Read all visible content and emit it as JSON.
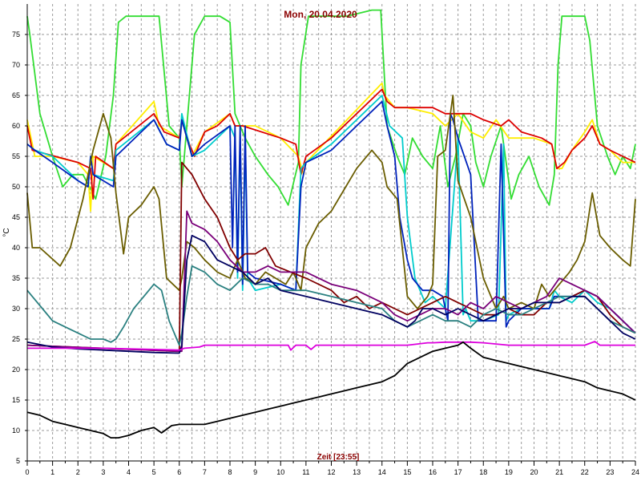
{
  "chart_data": {
    "type": "line",
    "title": "Mon, 20.04.2020",
    "xlabel": "Zeit [23:55]",
    "ylabel": "°C",
    "xlim": [
      0,
      24
    ],
    "ylim": [
      5,
      80
    ],
    "xticks": [
      0,
      1,
      2,
      3,
      4,
      5,
      6,
      7,
      8,
      9,
      10,
      11,
      12,
      13,
      14,
      15,
      16,
      17,
      18,
      19,
      20,
      21,
      22,
      23,
      24
    ],
    "yticks": [
      5,
      10,
      15,
      20,
      25,
      30,
      35,
      40,
      45,
      50,
      55,
      60,
      65,
      70,
      75
    ],
    "grid": true,
    "series": [
      {
        "color": "#33dd33",
        "x": [
          0,
          0.1,
          0.5,
          1,
          1.4,
          1.8,
          2.2,
          2.7,
          3.1,
          3.4,
          3.6,
          3.9,
          4.3,
          4.8,
          5.2,
          5.6,
          6,
          6.1,
          6.3,
          6.6,
          7,
          7.6,
          8,
          8.2,
          8.6,
          9,
          9.5,
          9.9,
          10.3,
          10.7,
          10.8,
          11.1,
          11.6,
          12.6,
          13.6,
          13.95,
          14.2,
          14.6,
          14.9,
          15.2,
          15.6,
          16,
          16.3,
          16.6,
          16.9,
          17.2,
          17.5,
          17.7,
          18,
          18.3,
          18.7,
          19.1,
          19.4,
          19.8,
          20.2,
          20.6,
          20.8,
          20.95,
          21.1,
          21.4,
          22,
          22.2,
          22.5,
          22.9,
          23.2,
          23.5,
          23.8,
          24
        ],
        "y": [
          78,
          75,
          62,
          55,
          50,
          52,
          52,
          48,
          55,
          65,
          77,
          78,
          78,
          78,
          78,
          60,
          58,
          50,
          60,
          75,
          78,
          78,
          77,
          62,
          58,
          55,
          52,
          50,
          47,
          54,
          70,
          78,
          78,
          78,
          79,
          79,
          60,
          55,
          52,
          58,
          55,
          53,
          60,
          50,
          55,
          62,
          60,
          54,
          50,
          55,
          60,
          48,
          52,
          55,
          50,
          47,
          52,
          70,
          78,
          78,
          78,
          74,
          60,
          55,
          52,
          55,
          53,
          57
        ]
      },
      {
        "color": "#ffee00",
        "x": [
          0,
          0.3,
          1,
          2,
          2.4,
          2.5,
          2.6,
          3.4,
          3.5,
          5,
          5.2,
          6,
          6.1,
          6.5,
          7,
          8,
          8.2,
          9,
          10,
          10.7,
          10.9,
          11,
          14,
          14.1,
          14.5,
          15,
          16,
          16.5,
          17,
          17.5,
          18,
          18.5,
          19,
          19.5,
          20,
          20.7,
          20.9,
          21.1,
          21.5,
          22,
          22.3,
          22.6,
          23,
          23.5,
          24
        ],
        "y": [
          61,
          55,
          55,
          54,
          52,
          46,
          55,
          53,
          57,
          64,
          60,
          58,
          61,
          55,
          59,
          62,
          60,
          60,
          58,
          55,
          52,
          54,
          67,
          65,
          63,
          63,
          62,
          60,
          62,
          59,
          58,
          61,
          58,
          58,
          58,
          57,
          53,
          53,
          56,
          59,
          61,
          57,
          56,
          54,
          54
        ]
      },
      {
        "color": "#dd0000",
        "x": [
          0,
          0.2,
          2,
          2.5,
          2.6,
          2.7,
          3.4,
          3.5,
          5,
          5.4,
          6,
          6.1,
          6.4,
          6.6,
          7,
          7.5,
          8,
          8.2,
          8.5,
          10,
          10.6,
          10.8,
          11,
          12,
          14,
          14.2,
          14.5,
          15,
          16,
          16.5,
          17,
          17.5,
          18,
          18.7,
          19,
          19.5,
          20.3,
          20.7,
          20.9,
          21.2,
          21.5,
          22,
          22.3,
          22.6,
          23,
          23.5,
          24
        ],
        "y": [
          60,
          56,
          54,
          53,
          48,
          55,
          53,
          57,
          62,
          59,
          58,
          61,
          57,
          55,
          59,
          60,
          62,
          60,
          60,
          58,
          57,
          52,
          55,
          58,
          66,
          64,
          63,
          63,
          63,
          62,
          62,
          62,
          61,
          60,
          61,
          59,
          58,
          57,
          53,
          54,
          56,
          58,
          60,
          57,
          56,
          55,
          54
        ]
      },
      {
        "color": "#00cccc",
        "x": [
          0,
          0.3,
          1,
          2,
          2.4,
          2.5,
          2.6,
          3.4,
          3.5,
          5,
          5.5,
          6,
          6.1,
          6.5,
          7,
          8,
          8.2,
          8.3,
          8.4,
          8.5,
          8.6,
          8.7,
          9,
          10,
          10.6,
          10.8,
          11,
          12,
          14,
          14.3,
          14.8,
          15,
          15.3,
          15.5,
          15.7,
          16,
          16.5,
          17,
          17.2,
          17.3,
          17.5,
          18,
          18.6,
          18.8,
          18.9,
          19,
          19.5,
          20,
          20.6,
          20.8,
          21,
          21.5,
          22,
          22.5,
          23,
          23.5,
          24
        ],
        "y": [
          57,
          56,
          55,
          51,
          50,
          55,
          52,
          51,
          56,
          61,
          57,
          56,
          62,
          55,
          56,
          60,
          58,
          35,
          58,
          33,
          58,
          35,
          33,
          34,
          33,
          53,
          54,
          57,
          65,
          60,
          58,
          45,
          35,
          33,
          31,
          32,
          30,
          58,
          29,
          30,
          28,
          28,
          29,
          57,
          28,
          29,
          30,
          30,
          30,
          33,
          32,
          31,
          33,
          31,
          30,
          28,
          26
        ]
      },
      {
        "color": "#0022bb",
        "x": [
          0,
          0.3,
          1,
          2,
          2.4,
          2.5,
          2.6,
          3.4,
          3.5,
          5,
          5.5,
          6,
          6.1,
          6.5,
          7,
          8,
          8.1,
          8.2,
          8.3,
          8.4,
          8.5,
          8.6,
          8.7,
          9,
          10,
          10.6,
          10.8,
          11,
          12,
          14,
          14.2,
          14.5,
          14.7,
          15,
          15.2,
          15.4,
          15.6,
          16,
          16.4,
          16.6,
          16.7,
          16.8,
          17,
          17.5,
          17.8,
          18,
          18.5,
          18.7,
          18.9,
          19,
          19.5,
          20,
          20.6,
          20.8,
          21,
          21.5,
          22,
          22.5,
          23,
          23.5,
          24
        ],
        "y": [
          57,
          56,
          54,
          51,
          50,
          55,
          52,
          50,
          55,
          61,
          57,
          56,
          61,
          55,
          57,
          60,
          40,
          60,
          36,
          60,
          34,
          60,
          36,
          35,
          34,
          33,
          50,
          54,
          56,
          64,
          60,
          55,
          45,
          38,
          35,
          34,
          33,
          33,
          32,
          28,
          62,
          61,
          58,
          52,
          28,
          28,
          28,
          57,
          27,
          28,
          30,
          30,
          30,
          32,
          32,
          32,
          33,
          32,
          30,
          28,
          26
        ]
      },
      {
        "color": "#6a5d00",
        "x": [
          0,
          0.2,
          0.5,
          1.3,
          1.7,
          2.2,
          2.6,
          3,
          3.3,
          3.5,
          3.8,
          4,
          4.5,
          5,
          5.2,
          5.5,
          6,
          6.1,
          6.3,
          6.6,
          7,
          7.5,
          8,
          8.3,
          8.6,
          9,
          9.4,
          9.8,
          10.2,
          10.5,
          10.8,
          11,
          11.5,
          12,
          13,
          13.6,
          14,
          14.2,
          14.6,
          15,
          15.4,
          15.8,
          16,
          16.2,
          16.5,
          16.8,
          17,
          17.5,
          18,
          18.5,
          18.8,
          19,
          19.5,
          20,
          20.3,
          20.6,
          20.8,
          21,
          21.4,
          21.7,
          22,
          22.3,
          22.6,
          23,
          23.5,
          23.8,
          24
        ],
        "y": [
          49,
          40,
          40,
          37,
          40,
          48,
          56,
          62,
          58,
          49,
          39,
          45,
          47,
          50,
          48,
          35,
          33,
          35,
          41,
          40,
          38,
          36,
          35,
          38,
          35,
          34,
          36,
          35,
          34,
          36,
          33,
          40,
          44,
          46,
          53,
          56,
          54,
          50,
          48,
          32,
          30,
          32,
          34,
          55,
          56,
          65,
          51,
          45,
          35,
          30,
          32,
          30,
          31,
          30,
          34,
          32,
          33,
          34,
          36,
          38,
          41,
          49,
          42,
          40,
          38,
          37,
          48
        ]
      },
      {
        "color": "#800000",
        "x": [
          0,
          5.9,
          6,
          6.1,
          6.5,
          7,
          7.5,
          8,
          8.3,
          8.6,
          9,
          9.4,
          9.8,
          10.4,
          11,
          12,
          12.5,
          13,
          13.5,
          14,
          14.5,
          15,
          15.5,
          16,
          16.5,
          17,
          17.5,
          18,
          18.5,
          19,
          19.5,
          20,
          20.5,
          21,
          21.5,
          22,
          22.5,
          23,
          23.5,
          24
        ],
        "y": [
          24,
          23,
          23,
          54,
          52,
          48,
          45,
          40,
          38,
          39,
          39,
          40,
          37,
          36,
          35,
          33,
          31,
          32,
          30,
          31,
          30,
          29,
          30,
          31,
          32,
          31,
          30,
          29,
          29,
          30,
          29,
          29,
          31,
          31,
          32,
          33,
          32,
          29,
          27,
          26
        ]
      },
      {
        "color": "#7a007a",
        "x": [
          0,
          6,
          6.1,
          6.3,
          6.5,
          7,
          7.5,
          8,
          8.5,
          9,
          9.5,
          10,
          11,
          12,
          13,
          14,
          14.5,
          15,
          15.5,
          16,
          16.5,
          17,
          17.5,
          18,
          18.5,
          19,
          19.5,
          20,
          20.5,
          21,
          21.5,
          22,
          22.5,
          23,
          23.5,
          24
        ],
        "y": [
          24,
          23,
          23,
          46,
          44,
          43,
          41,
          38,
          36,
          36,
          37,
          36,
          36,
          34,
          33,
          31,
          29,
          28,
          29,
          30,
          30,
          29,
          31,
          30,
          32,
          31,
          30,
          31,
          32,
          35,
          34,
          33,
          32,
          30,
          28,
          26
        ]
      },
      {
        "color": "#2a8080",
        "x": [
          0,
          0.2,
          0.6,
          1,
          1.5,
          2,
          2.5,
          3,
          3.3,
          3.5,
          3.8,
          4.2,
          4.6,
          5,
          5.3,
          5.6,
          5.9,
          6,
          6.1,
          6.3,
          6.5,
          7,
          7.5,
          8,
          8.5,
          9,
          9.5,
          10,
          11,
          12,
          13,
          14,
          14.5,
          15,
          15.5,
          16,
          16.5,
          17,
          17.5,
          18,
          18.5,
          19,
          19.5,
          20,
          20.5,
          21,
          21.5,
          22,
          22.5,
          23,
          23.5,
          24
        ],
        "y": [
          33,
          32,
          30,
          28,
          27,
          26,
          25,
          25,
          24.5,
          25,
          27,
          30,
          32,
          34,
          33,
          28,
          25,
          24,
          26,
          32,
          37,
          36,
          34,
          33,
          35,
          34,
          34,
          33,
          33,
          32,
          31,
          30,
          28,
          27,
          28,
          29,
          28,
          28,
          27,
          29,
          30,
          29,
          29,
          30,
          31,
          32,
          32,
          32,
          30,
          28,
          27,
          26
        ]
      },
      {
        "color": "#000060",
        "x": [
          0,
          1,
          2,
          3,
          4,
          5,
          6,
          6.1,
          6.3,
          6.5,
          7,
          7.5,
          8,
          8.5,
          9,
          9.5,
          10,
          11,
          12,
          13,
          14,
          14.5,
          15,
          15.3,
          15.6,
          16,
          16.5,
          17,
          17.5,
          18,
          18.5,
          19,
          19.5,
          20,
          20.5,
          21,
          21.5,
          22,
          22.5,
          23,
          23.5,
          24
        ],
        "y": [
          24.5,
          23.7,
          23.4,
          23.2,
          23,
          22.8,
          22.7,
          24,
          38,
          42,
          41,
          38,
          37,
          36,
          34,
          35,
          33,
          32,
          31,
          30,
          29,
          28,
          27,
          28,
          30,
          30,
          29,
          30,
          29,
          28,
          29,
          30,
          30,
          31,
          31,
          31,
          32,
          32,
          30,
          28,
          26,
          25
        ]
      },
      {
        "color": "#dd00dd",
        "x": [
          0,
          1,
          2,
          3,
          4,
          5,
          6,
          6.2,
          6.8,
          7,
          8,
          9,
          10,
          10.3,
          10.4,
          10.6,
          11,
          11.2,
          11.4,
          12,
          13,
          14,
          15,
          15.8,
          16,
          16.5,
          17,
          17.5,
          18,
          18.5,
          19,
          20,
          21,
          22,
          22.4,
          22.6,
          23,
          24
        ],
        "y": [
          23.5,
          23.5,
          23.5,
          23.5,
          23.4,
          23.3,
          23.2,
          23.5,
          23.7,
          24,
          24,
          24,
          24,
          24,
          23.2,
          24,
          24,
          23.3,
          24,
          24,
          24,
          24,
          24,
          24.4,
          24.4,
          24.5,
          24.5,
          24.5,
          24.4,
          24.2,
          24,
          24,
          24,
          24,
          24.6,
          24,
          24,
          24
        ]
      },
      {
        "color": "#000000",
        "x": [
          0,
          0.5,
          1,
          1.5,
          2,
          2.5,
          3,
          3.3,
          3.6,
          4,
          4.5,
          5,
          5.3,
          5.7,
          6,
          6.5,
          7,
          7.5,
          8,
          8.5,
          9,
          9.5,
          10,
          10.5,
          11,
          11.5,
          12,
          12.5,
          13,
          13.5,
          14,
          14.5,
          15,
          15.5,
          16,
          16.5,
          17,
          17.2,
          17.5,
          18,
          18.5,
          19,
          19.5,
          20,
          20.5,
          21,
          21.5,
          22,
          22.5,
          23,
          23.5,
          24
        ],
        "y": [
          13,
          12.5,
          11.5,
          11,
          10.5,
          10,
          9.5,
          8.8,
          8.8,
          9.2,
          10,
          10.5,
          9.6,
          10.8,
          11,
          11,
          11,
          11.5,
          12,
          12.5,
          13,
          13.5,
          14,
          14.5,
          15,
          15.5,
          16,
          16.5,
          17,
          17.5,
          18,
          19,
          21,
          22,
          23,
          23.5,
          24,
          24.5,
          23.5,
          22,
          21.5,
          21,
          20.5,
          20,
          19.5,
          19,
          18.5,
          18,
          17,
          16.5,
          16,
          15
        ]
      }
    ]
  }
}
